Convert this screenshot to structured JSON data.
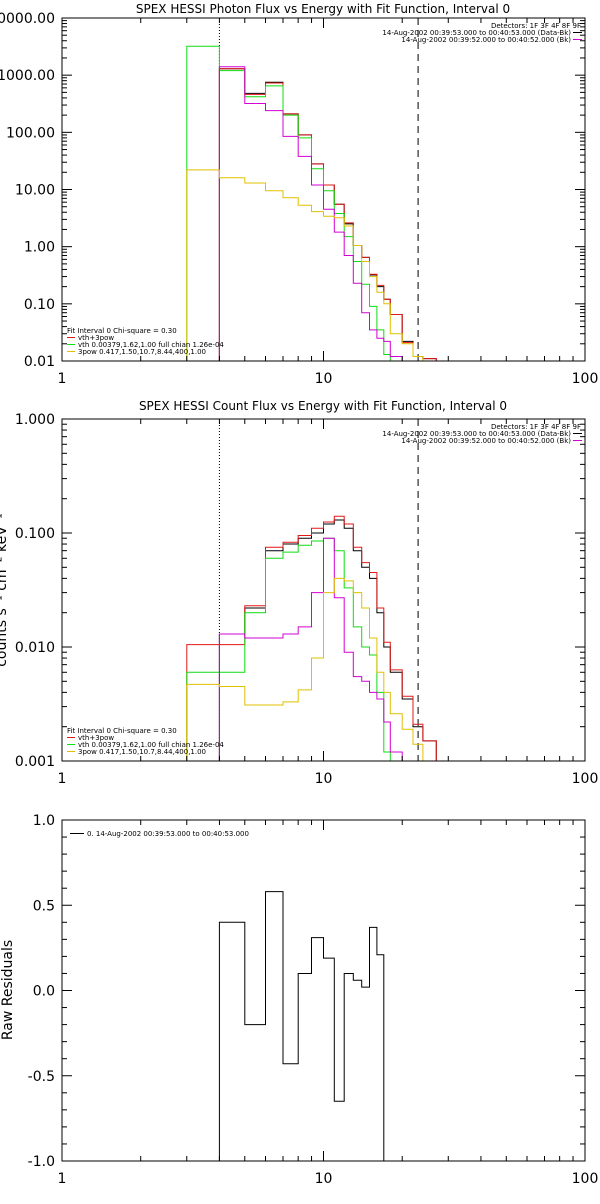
{
  "chart_data": [
    {
      "type": "line",
      "title": "SPEX HESSI Photon Flux vs Energy with Fit Function, Interval 0",
      "xlabel": "",
      "ylabel": "",
      "x_scale": "log",
      "y_scale": "log",
      "xlim": [
        1,
        100
      ],
      "ylim": [
        0.01,
        10000
      ],
      "x_ticks": [
        1,
        10,
        100
      ],
      "x_tick_labels": [
        "1",
        "10",
        "100"
      ],
      "y_ticks": [
        0.01,
        0.1,
        1,
        10,
        100,
        1000,
        10000
      ],
      "y_tick_labels": [
        "0.01",
        "0.10",
        "1.00",
        "10.00",
        "100.00",
        "1000.00",
        "10000.00"
      ],
      "header_lines": [
        {
          "text": "Detectors: 1F 3F 4F 8F 9F",
          "color": ""
        },
        {
          "text": "14-Aug-2002 00:39:53.000 to 00:40:53.000 (Data-Bk)",
          "color": "#000000"
        },
        {
          "text": "14-Aug-2002 00:39:52.000 to 00:40:52.000 (Bk)",
          "color": "#d400d4"
        }
      ],
      "legend": {
        "position": "bottom-left",
        "title": "Fit Interval 0   Chi-square = 0.30",
        "items": [
          {
            "text": "vth+3pow",
            "color": "#e01818"
          },
          {
            "text": "vth 0.00379,1.62,1.00  full chian 1.26e-04",
            "color": "#10dc10"
          },
          {
            "text": "3pow 0.417,1.50,10.7,8.44,400,1.00",
            "color": "#e0c000"
          }
        ]
      },
      "vlines": [
        {
          "x": 4.0,
          "style": "dotted",
          "color": "#000000"
        },
        {
          "x": 23.0,
          "style": "dashed",
          "color": "#000000"
        }
      ],
      "edges": [
        3,
        4,
        5,
        6,
        7,
        8,
        9,
        10,
        11,
        12,
        13,
        14,
        15,
        16,
        17,
        18,
        20,
        22,
        24,
        27
      ],
      "series": [
        {
          "name": "",
          "color": "#000000",
          "from_edge": 1,
          "values": [
            1300,
            480,
            750,
            210,
            90,
            28,
            12,
            5.5,
            2.5,
            1.05,
            0.65,
            0.32,
            0.2,
            0.12,
            0.065,
            0.022,
            0.012,
            0.011,
            0.007
          ]
        },
        {
          "name": "",
          "color": "#e01818",
          "from_edge": 1,
          "values": [
            1300,
            460,
            730,
            210,
            90,
            28,
            12,
            5.5,
            2.6,
            1.05,
            0.65,
            0.33,
            0.21,
            0.12,
            0.065,
            0.021,
            0.012,
            0.011,
            0.007
          ]
        },
        {
          "name": "",
          "color": "#10dc10",
          "from_edge": 0,
          "values": [
            3200,
            1200,
            420,
            650,
            200,
            80,
            23,
            9.5,
            3.8,
            1.5,
            0.55,
            0.22,
            0.09,
            0.035,
            0.013,
            0.004
          ]
        },
        {
          "name": "",
          "color": "#d400d4",
          "from_edge": 1,
          "values": [
            1400,
            320,
            240,
            85,
            38,
            12,
            4.5,
            1.8,
            0.7,
            0.23,
            0.07,
            0.035,
            0.025,
            0.022,
            0.012,
            0.006
          ]
        },
        {
          "name": "",
          "color": "#e0c000",
          "from_edge": 0,
          "values": [
            22,
            16,
            13,
            9.5,
            7.2,
            5.3,
            4.1,
            3.4,
            3.2,
            2.3,
            1.05,
            0.55,
            0.3,
            0.16,
            0.1,
            0.03,
            0.02,
            0.012,
            0.007
          ]
        }
      ]
    },
    {
      "type": "line",
      "title": "SPEX HESSI Count Flux vs Energy with Fit Function, Interval 0",
      "xlabel": "",
      "ylabel": "counts s⁻¹ cm⁻² keV⁻¹",
      "x_scale": "log",
      "y_scale": "log",
      "xlim": [
        1,
        100
      ],
      "ylim": [
        0.001,
        1
      ],
      "x_ticks": [
        1,
        10,
        100
      ],
      "x_tick_labels": [
        "1",
        "10",
        "100"
      ],
      "y_ticks": [
        0.001,
        0.01,
        0.1,
        1
      ],
      "y_tick_labels": [
        "0.001",
        "0.010",
        "0.100",
        "1.000"
      ],
      "header_lines": [
        {
          "text": "Detectors: 1F 3F 4F 8F 9F",
          "color": ""
        },
        {
          "text": "14-Aug-2002 00:39:53.000 to 00:40:53.000 (Data-Bk)",
          "color": "#000000"
        },
        {
          "text": "14-Aug-2002 00:39:52.000 to 00:40:52.000 (Bk)",
          "color": "#d400d4"
        }
      ],
      "legend": {
        "position": "bottom-left",
        "title": "Fit Interval 0   Chi-square = 0.30",
        "items": [
          {
            "text": "vth+3pow",
            "color": "#e01818"
          },
          {
            "text": "vth 0.00379,1.62,1.00  full chian 1.26e-04",
            "color": "#10dc10"
          },
          {
            "text": "3pow 0.417,1.50,10.7,8.44,400,1.00",
            "color": "#e0c000"
          }
        ]
      },
      "vlines": [
        {
          "x": 4.0,
          "style": "dotted",
          "color": "#000000"
        },
        {
          "x": 23.0,
          "style": "dashed",
          "color": "#000000"
        }
      ],
      "edges": [
        3,
        4,
        5,
        6,
        7,
        8,
        9,
        10,
        11,
        12,
        13,
        14,
        15,
        16,
        17,
        18,
        20,
        22,
        24,
        27
      ],
      "series": [
        {
          "name": "",
          "color": "#000000",
          "from_edge": 1,
          "values": [
            0.013,
            0.022,
            0.07,
            0.08,
            0.09,
            0.1,
            0.12,
            0.13,
            0.11,
            0.07,
            0.05,
            0.04,
            0.02,
            0.01,
            0.006,
            0.0035,
            0.002,
            0.0015
          ]
        },
        {
          "name": "",
          "color": "#e01818",
          "from_edge": 0,
          "values": [
            0.0105,
            0.0105,
            0.023,
            0.075,
            0.083,
            0.095,
            0.11,
            0.125,
            0.14,
            0.12,
            0.075,
            0.055,
            0.045,
            0.022,
            0.011,
            0.0063,
            0.0037,
            0.0021,
            0.0015
          ]
        },
        {
          "name": "",
          "color": "#10dc10",
          "from_edge": 0,
          "values": [
            0.006,
            0.006,
            0.02,
            0.06,
            0.068,
            0.078,
            0.085,
            0.09,
            0.07,
            0.033,
            0.015,
            0.01,
            0.0085,
            0.004,
            0.0012
          ]
        },
        {
          "name": "",
          "color": "#d400d4",
          "from_edge": 1,
          "values": [
            0.013,
            0.012,
            0.012,
            0.013,
            0.015,
            0.03,
            0.09,
            0.027,
            0.009,
            0.0055,
            0.005,
            0.004,
            0.0035,
            0.0022,
            0.0012
          ]
        },
        {
          "name": "",
          "color": "#e0c000",
          "from_edge": 0,
          "values": [
            0.0047,
            0.0045,
            0.0031,
            0.0031,
            0.0033,
            0.0042,
            0.008,
            0.03,
            0.04,
            0.038,
            0.03,
            0.022,
            0.012,
            0.006,
            0.004,
            0.0026,
            0.0019,
            0.0014,
            0.0009
          ]
        }
      ]
    },
    {
      "type": "line",
      "title": "",
      "xlabel": "",
      "ylabel": "Raw Residuals",
      "x_scale": "log",
      "y_scale": "linear",
      "xlim": [
        1,
        100
      ],
      "ylim": [
        -1,
        1
      ],
      "x_ticks": [
        1,
        10,
        100
      ],
      "x_tick_labels": [
        "1",
        "10",
        "100"
      ],
      "y_ticks": [
        -1,
        -0.5,
        0,
        0.5,
        1
      ],
      "y_tick_labels": [
        "-1.0",
        "-0.5",
        "0.0",
        "0.5",
        "1.0"
      ],
      "header_lines": [],
      "legend": {
        "position": "top-left",
        "title": "",
        "items": [
          {
            "text": "0. 14-Aug-2002 00:39:53.000 to 00:40:53.000",
            "color": "#000000"
          }
        ]
      },
      "vlines": [],
      "edges": [
        4,
        5,
        6,
        7,
        8,
        9,
        10,
        11,
        12,
        13,
        14,
        15,
        16,
        17,
        18,
        20,
        22
      ],
      "series": [
        {
          "name": "",
          "color": "#000000",
          "from_edge": 0,
          "start_value": -1,
          "end_value": -1,
          "values": [
            0.4,
            -0.2,
            0.58,
            -0.43,
            0.1,
            0.31,
            0.19,
            -0.65,
            0.1,
            0.06,
            0.02,
            0.37,
            0.21
          ]
        }
      ]
    }
  ]
}
